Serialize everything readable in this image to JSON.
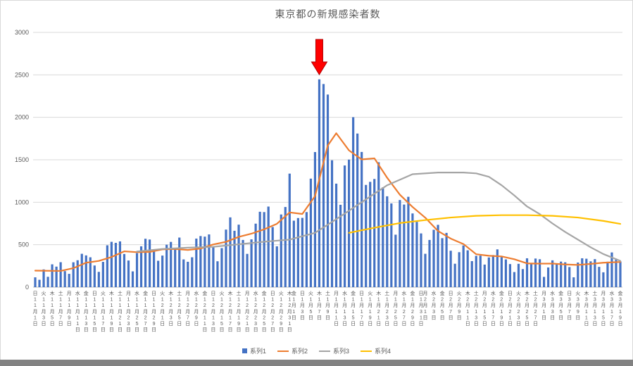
{
  "colors": {
    "bar_blue": "#4472c4",
    "line_orange": "#ed7d31",
    "line_gray": "#a5a5a5",
    "line_yellow": "#ffc000",
    "text": "#595959",
    "grid": "#dadada",
    "axis": "#bfbfbf",
    "arrow_red": "#ff0000",
    "bottom_strip": "#828282",
    "background": "#ffffff"
  },
  "chart_data": {
    "type": "bar",
    "title": "東京都の新規感染者数",
    "ylim": [
      0,
      3000
    ],
    "yticks": [
      0,
      500,
      1000,
      1500,
      2000,
      2500,
      3000
    ],
    "grid": true,
    "legend_position": "bottom",
    "n_days": 139,
    "x_ticks": [
      [
        0,
        "日",
        "11",
        "1"
      ],
      [
        2,
        "火",
        "11",
        "3"
      ],
      [
        4,
        "木",
        "11",
        "5"
      ],
      [
        6,
        "土",
        "11",
        "7"
      ],
      [
        8,
        "月",
        "11",
        "9"
      ],
      [
        10,
        "水",
        "11",
        "11"
      ],
      [
        12,
        "金",
        "11",
        "13"
      ],
      [
        14,
        "日",
        "11",
        "15"
      ],
      [
        16,
        "火",
        "11",
        "17"
      ],
      [
        18,
        "木",
        "11",
        "19"
      ],
      [
        20,
        "土",
        "11",
        "21"
      ],
      [
        22,
        "月",
        "11",
        "23"
      ],
      [
        24,
        "水",
        "11",
        "25"
      ],
      [
        26,
        "金",
        "11",
        "27"
      ],
      [
        28,
        "日",
        "11",
        "29"
      ],
      [
        30,
        "火",
        "12",
        "1"
      ],
      [
        32,
        "木",
        "12",
        "3"
      ],
      [
        34,
        "土",
        "12",
        "5"
      ],
      [
        36,
        "月",
        "12",
        "7"
      ],
      [
        38,
        "水",
        "12",
        "9"
      ],
      [
        40,
        "金",
        "12",
        "11"
      ],
      [
        42,
        "日",
        "12",
        "13"
      ],
      [
        44,
        "火",
        "12",
        "15"
      ],
      [
        46,
        "木",
        "12",
        "17"
      ],
      [
        48,
        "土",
        "12",
        "19"
      ],
      [
        50,
        "月",
        "12",
        "21"
      ],
      [
        52,
        "水",
        "12",
        "23"
      ],
      [
        54,
        "金",
        "12",
        "25"
      ],
      [
        56,
        "日",
        "12",
        "27"
      ],
      [
        58,
        "火",
        "12",
        "29"
      ],
      [
        60,
        "木",
        "12",
        "31"
      ],
      [
        61,
        "金",
        "1",
        "1"
      ],
      [
        63,
        "日",
        "1",
        "3"
      ],
      [
        65,
        "火",
        "1",
        "5"
      ],
      [
        67,
        "木",
        "1",
        "7"
      ],
      [
        69,
        "土",
        "1",
        "9"
      ],
      [
        71,
        "月",
        "1",
        "11"
      ],
      [
        73,
        "水",
        "1",
        "13"
      ],
      [
        75,
        "金",
        "1",
        "15"
      ],
      [
        77,
        "日",
        "1",
        "17"
      ],
      [
        79,
        "火",
        "1",
        "19"
      ],
      [
        81,
        "木",
        "1",
        "21"
      ],
      [
        83,
        "土",
        "1",
        "23"
      ],
      [
        85,
        "月",
        "1",
        "25"
      ],
      [
        87,
        "水",
        "1",
        "27"
      ],
      [
        89,
        "金",
        "1",
        "29"
      ],
      [
        91,
        "日",
        "1",
        "31"
      ],
      [
        92,
        "月",
        "2",
        "1"
      ],
      [
        94,
        "水",
        "2",
        "3"
      ],
      [
        96,
        "金",
        "2",
        "5"
      ],
      [
        98,
        "日",
        "2",
        "7"
      ],
      [
        100,
        "火",
        "2",
        "9"
      ],
      [
        102,
        "木",
        "2",
        "11"
      ],
      [
        104,
        "土",
        "2",
        "13"
      ],
      [
        106,
        "月",
        "2",
        "15"
      ],
      [
        108,
        "水",
        "2",
        "17"
      ],
      [
        110,
        "金",
        "2",
        "19"
      ],
      [
        112,
        "日",
        "2",
        "21"
      ],
      [
        114,
        "火",
        "2",
        "23"
      ],
      [
        116,
        "木",
        "2",
        "25"
      ],
      [
        118,
        "土",
        "2",
        "27"
      ],
      [
        120,
        "月",
        "3",
        "1"
      ],
      [
        122,
        "水",
        "3",
        "3"
      ],
      [
        124,
        "金",
        "3",
        "5"
      ],
      [
        126,
        "日",
        "3",
        "7"
      ],
      [
        128,
        "火",
        "3",
        "9"
      ],
      [
        130,
        "木",
        "3",
        "11"
      ],
      [
        132,
        "土",
        "3",
        "13"
      ],
      [
        134,
        "月",
        "3",
        "15"
      ],
      [
        136,
        "水",
        "3",
        "17"
      ],
      [
        138,
        "金",
        "3",
        "19"
      ]
    ],
    "series": [
      {
        "name": "系列1",
        "type": "bar",
        "color": "#4472c4",
        "values": [
          116,
          87,
          209,
          122,
          269,
          242,
          294,
          189,
          157,
          293,
          317,
          393,
          374,
          352,
          255,
          180,
          298,
          493,
          534,
          522,
          539,
          391,
          314,
          186,
          401,
          481,
          570,
          561,
          418,
          311,
          372,
          500,
          533,
          449,
          584,
          327,
          299,
          352,
          572,
          602,
          595,
          621,
          480,
          305,
          460,
          678,
          822,
          664,
          736,
          556,
          392,
          563,
          748,
          888,
          884,
          949,
          708,
          481,
          856,
          944,
          1337,
          783,
          814,
          816,
          884,
          1278,
          1591,
          2447,
          2392,
          2268,
          1494,
          1219,
          970,
          1433,
          1502,
          2001,
          1809,
          1592,
          1204,
          1240,
          1274,
          1471,
          1175,
          1070,
          986,
          618,
          1026,
          973,
          1064,
          868,
          769,
          633,
          393,
          556,
          676,
          734,
          577,
          639,
          429,
          276,
          412,
          491,
          434,
          307,
          369,
          371,
          266,
          350,
          378,
          445,
          353,
          327,
          272,
          178,
          275,
          213,
          340,
          270,
          337,
          329,
          121,
          232,
          316,
          279,
          301,
          293,
          237,
          116,
          290,
          340,
          335,
          304,
          330,
          239,
          175,
          300,
          409,
          323,
          303
        ]
      },
      {
        "name": "系列2",
        "type": "line",
        "color": "#ed7d31",
        "x": [
          0,
          6,
          9,
          12,
          15,
          18,
          21,
          24,
          27,
          30,
          33,
          36,
          39,
          42,
          45,
          48,
          51,
          54,
          57,
          60,
          63,
          66,
          69,
          71,
          74,
          77,
          80,
          83,
          86,
          89,
          92,
          95,
          98,
          101,
          104,
          107,
          110,
          113,
          116,
          119,
          122,
          125,
          128,
          131,
          134,
          138
        ],
        "y": [
          195,
          191,
          224,
          288,
          309,
          355,
          422,
          412,
          415,
          445,
          449,
          438,
          455,
          503,
          534,
          592,
          630,
          681,
          746,
          880,
          862,
          1072,
          1668,
          1813,
          1611,
          1504,
          1517,
          1289,
          1089,
          944,
          818,
          661,
          572,
          508,
          388,
          370,
          362,
          329,
          280,
          277,
          278,
          267,
          262,
          274,
          288,
          297
        ]
      },
      {
        "name": "系列3",
        "type": "line",
        "color": "#a5a5a5",
        "x": [
          24,
          30,
          36,
          42,
          48,
          54,
          60,
          66,
          71,
          77,
          83,
          89,
          95,
          101,
          104,
          107,
          110,
          113,
          116,
          119,
          122,
          125,
          128,
          131,
          134,
          138
        ],
        "y": [
          420,
          450,
          465,
          475,
          505,
          535,
          560,
          640,
          800,
          1000,
          1200,
          1330,
          1350,
          1350,
          1340,
          1300,
          1200,
          1080,
          950,
          860,
          750,
          650,
          560,
          470,
          390,
          310
        ]
      },
      {
        "name": "系列4",
        "type": "line",
        "color": "#ffc000",
        "x": [
          74,
          80,
          86,
          92,
          98,
          104,
          110,
          116,
          122,
          128,
          134,
          138
        ],
        "y": [
          640,
          700,
          755,
          790,
          820,
          840,
          848,
          848,
          840,
          820,
          780,
          745
        ]
      }
    ],
    "annotation": {
      "shape": "down-arrow",
      "color": "#ff0000",
      "day_index": 67,
      "points_at_value": 2447
    }
  }
}
